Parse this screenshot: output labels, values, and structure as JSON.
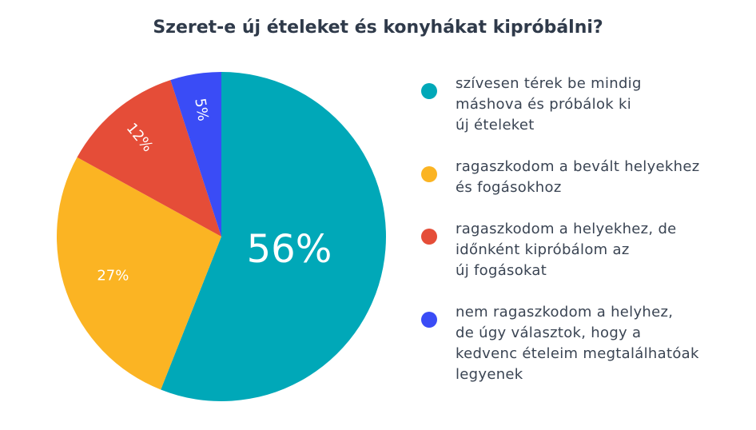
{
  "chart_data": {
    "type": "pie",
    "title": "Szeret-e új ételeket és konyhákat kipróbálni?",
    "slices": [
      {
        "label": "szívesen térek be mindig\nmáshova és próbálok ki\núj ételeket",
        "value": 56,
        "display": "56%",
        "color": "#00a8b8"
      },
      {
        "label": "ragaszkodom a bevált helyekhez\nés fogásokhoz",
        "value": 27,
        "display": "27%",
        "color": "#fbb423"
      },
      {
        "label": "ragaszkodom a helyekhez, de\nidőnként kipróbálom az\núj fogásokat",
        "value": 12,
        "display": "12%",
        "color": "#e54d38"
      },
      {
        "label": "nem ragaszkodom a helyhez,\nde úgy választok, hogy a\nkedvenc ételeim megtalálhatóak\nlegyenek",
        "value": 5,
        "display": "5%",
        "color": "#3a4cf6"
      }
    ],
    "start": "top",
    "direction": "clockwise",
    "legend_position": "right"
  }
}
